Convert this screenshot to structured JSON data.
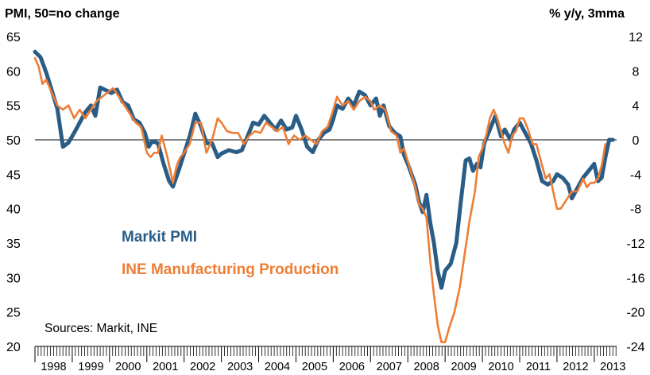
{
  "chart_data": {
    "type": "line",
    "left_axis_title": "PMI, 50=no change",
    "right_axis_title": "% y/y, 3mma",
    "left_ylim": [
      20,
      65
    ],
    "left_ticks": [
      "65",
      "60",
      "55",
      "50",
      "45",
      "40",
      "35",
      "30",
      "25",
      "20"
    ],
    "right_ylim": [
      -24,
      12
    ],
    "right_ticks": [
      "12",
      "8",
      "4",
      "0",
      "-4",
      "-8",
      "-12",
      "-16",
      "-20",
      "-24"
    ],
    "x_range": [
      1998.0,
      2013.6
    ],
    "year_labels": [
      "1998",
      "1999",
      "2000",
      "2001",
      "2002",
      "2003",
      "2004",
      "2005",
      "2006",
      "2007",
      "2008",
      "2009",
      "2010",
      "2011",
      "2012",
      "2013"
    ],
    "reference_line": {
      "axis": "right",
      "value": 0
    },
    "source": "Sources: Markit, INE",
    "series": [
      {
        "name": "Markit PMI",
        "axis": "left",
        "color": "#2a5d86",
        "points": [
          [
            1998.0,
            62.8
          ],
          [
            1998.15,
            62.0
          ],
          [
            1998.3,
            59.8
          ],
          [
            1998.45,
            57.2
          ],
          [
            1998.6,
            54.5
          ],
          [
            1998.75,
            49.0
          ],
          [
            1998.9,
            49.6
          ],
          [
            1999.05,
            51.0
          ],
          [
            1999.2,
            52.5
          ],
          [
            1999.35,
            54.0
          ],
          [
            1999.5,
            55.0
          ],
          [
            1999.62,
            53.5
          ],
          [
            1999.75,
            57.6
          ],
          [
            1999.9,
            57.2
          ],
          [
            2000.05,
            56.8
          ],
          [
            2000.2,
            57.3
          ],
          [
            2000.35,
            55.5
          ],
          [
            2000.5,
            55.0
          ],
          [
            2000.65,
            53.0
          ],
          [
            2000.8,
            52.5
          ],
          [
            2000.95,
            51.0
          ],
          [
            2001.05,
            49.0
          ],
          [
            2001.15,
            49.8
          ],
          [
            2001.3,
            49.5
          ],
          [
            2001.45,
            46.5
          ],
          [
            2001.6,
            44.0
          ],
          [
            2001.7,
            43.2
          ],
          [
            2001.85,
            45.5
          ],
          [
            2002.0,
            48.0
          ],
          [
            2002.15,
            50.5
          ],
          [
            2002.3,
            53.8
          ],
          [
            2002.45,
            52.0
          ],
          [
            2002.6,
            49.5
          ],
          [
            2002.75,
            49.5
          ],
          [
            2002.9,
            47.5
          ],
          [
            2003.0,
            48.0
          ],
          [
            2003.2,
            48.5
          ],
          [
            2003.4,
            48.2
          ],
          [
            2003.55,
            48.5
          ],
          [
            2003.7,
            50.5
          ],
          [
            2003.85,
            52.5
          ],
          [
            2004.0,
            52.2
          ],
          [
            2004.15,
            53.5
          ],
          [
            2004.3,
            52.5
          ],
          [
            2004.45,
            51.5
          ],
          [
            2004.6,
            52.8
          ],
          [
            2004.75,
            51.5
          ],
          [
            2004.9,
            51.8
          ],
          [
            2005.0,
            53.5
          ],
          [
            2005.15,
            51.5
          ],
          [
            2005.3,
            49.0
          ],
          [
            2005.45,
            48.2
          ],
          [
            2005.6,
            50.0
          ],
          [
            2005.75,
            51.0
          ],
          [
            2005.9,
            51.5
          ],
          [
            2006.0,
            53.0
          ],
          [
            2006.1,
            55.0
          ],
          [
            2006.25,
            54.5
          ],
          [
            2006.4,
            56.0
          ],
          [
            2006.55,
            55.0
          ],
          [
            2006.7,
            57.0
          ],
          [
            2006.85,
            56.5
          ],
          [
            2007.0,
            55.0
          ],
          [
            2007.15,
            56.0
          ],
          [
            2007.25,
            53.5
          ],
          [
            2007.35,
            55.0
          ],
          [
            2007.5,
            52.0
          ],
          [
            2007.65,
            51.0
          ],
          [
            2007.8,
            50.5
          ],
          [
            2007.9,
            47.8
          ],
          [
            2008.0,
            46.5
          ],
          [
            2008.1,
            45.0
          ],
          [
            2008.2,
            43.5
          ],
          [
            2008.3,
            41.0
          ],
          [
            2008.4,
            39.5
          ],
          [
            2008.5,
            42.0
          ],
          [
            2008.6,
            38.0
          ],
          [
            2008.7,
            35.0
          ],
          [
            2008.8,
            31.0
          ],
          [
            2008.9,
            28.5
          ],
          [
            2009.0,
            31.0
          ],
          [
            2009.15,
            32.0
          ],
          [
            2009.3,
            35.0
          ],
          [
            2009.4,
            40.0
          ],
          [
            2009.55,
            47.0
          ],
          [
            2009.65,
            47.3
          ],
          [
            2009.75,
            45.5
          ],
          [
            2009.85,
            46.5
          ],
          [
            2009.95,
            46.0
          ],
          [
            2010.05,
            49.5
          ],
          [
            2010.2,
            51.5
          ],
          [
            2010.35,
            53.5
          ],
          [
            2010.5,
            50.5
          ],
          [
            2010.6,
            51.5
          ],
          [
            2010.75,
            50.0
          ],
          [
            2010.85,
            51.5
          ],
          [
            2011.0,
            52.5
          ],
          [
            2011.15,
            51.0
          ],
          [
            2011.3,
            49.5
          ],
          [
            2011.45,
            47.0
          ],
          [
            2011.6,
            44.0
          ],
          [
            2011.75,
            43.5
          ],
          [
            2011.9,
            44.0
          ],
          [
            2012.0,
            45.0
          ],
          [
            2012.15,
            44.5
          ],
          [
            2012.3,
            43.5
          ],
          [
            2012.4,
            41.5
          ],
          [
            2012.55,
            43.0
          ],
          [
            2012.7,
            44.5
          ],
          [
            2012.85,
            45.5
          ],
          [
            2013.0,
            46.5
          ],
          [
            2013.1,
            44.0
          ],
          [
            2013.2,
            44.5
          ],
          [
            2013.3,
            47.5
          ],
          [
            2013.4,
            50.0
          ],
          [
            2013.5,
            50.0
          ]
        ]
      },
      {
        "name": "INE Manufacturing Production",
        "axis": "right",
        "color": "#ee7d35",
        "points": [
          [
            1998.0,
            9.5
          ],
          [
            1998.1,
            8.5
          ],
          [
            1998.2,
            6.5
          ],
          [
            1998.3,
            7.0
          ],
          [
            1998.45,
            5.5
          ],
          [
            1998.6,
            4.0
          ],
          [
            1998.75,
            3.5
          ],
          [
            1998.9,
            4.0
          ],
          [
            1999.05,
            2.5
          ],
          [
            1999.2,
            3.5
          ],
          [
            1999.35,
            2.5
          ],
          [
            1999.5,
            3.5
          ],
          [
            1999.65,
            4.5
          ],
          [
            1999.8,
            5.0
          ],
          [
            1999.95,
            5.5
          ],
          [
            2000.1,
            6.0
          ],
          [
            2000.25,
            5.0
          ],
          [
            2000.4,
            4.0
          ],
          [
            2000.55,
            3.0
          ],
          [
            2000.7,
            2.0
          ],
          [
            2000.85,
            1.5
          ],
          [
            2001.0,
            -1.5
          ],
          [
            2001.1,
            -2.0
          ],
          [
            2001.2,
            -1.5
          ],
          [
            2001.3,
            -1.5
          ],
          [
            2001.4,
            0.5
          ],
          [
            2001.55,
            -2.0
          ],
          [
            2001.7,
            -5.0
          ],
          [
            2001.8,
            -3.0
          ],
          [
            2001.9,
            -2.0
          ],
          [
            2002.0,
            -1.5
          ],
          [
            2002.15,
            -0.5
          ],
          [
            2002.3,
            2.0
          ],
          [
            2002.45,
            2.0
          ],
          [
            2002.6,
            -1.5
          ],
          [
            2002.75,
            0.0
          ],
          [
            2002.9,
            2.5
          ],
          [
            2003.0,
            2.0
          ],
          [
            2003.15,
            1.0
          ],
          [
            2003.3,
            0.8
          ],
          [
            2003.45,
            0.8
          ],
          [
            2003.6,
            -0.5
          ],
          [
            2003.75,
            0.5
          ],
          [
            2003.9,
            1.0
          ],
          [
            2004.05,
            0.8
          ],
          [
            2004.2,
            2.0
          ],
          [
            2004.35,
            1.5
          ],
          [
            2004.5,
            1.0
          ],
          [
            2004.65,
            1.5
          ],
          [
            2004.8,
            -0.5
          ],
          [
            2004.95,
            0.5
          ],
          [
            2005.1,
            0.0
          ],
          [
            2005.25,
            0.5
          ],
          [
            2005.4,
            0.0
          ],
          [
            2005.55,
            -0.5
          ],
          [
            2005.7,
            1.0
          ],
          [
            2005.85,
            1.5
          ],
          [
            2006.0,
            3.5
          ],
          [
            2006.1,
            5.0
          ],
          [
            2006.25,
            4.0
          ],
          [
            2006.4,
            4.5
          ],
          [
            2006.55,
            3.5
          ],
          [
            2006.7,
            4.5
          ],
          [
            2006.85,
            5.0
          ],
          [
            2007.0,
            4.5
          ],
          [
            2007.1,
            3.5
          ],
          [
            2007.25,
            4.0
          ],
          [
            2007.4,
            3.5
          ],
          [
            2007.55,
            1.0
          ],
          [
            2007.7,
            0.5
          ],
          [
            2007.8,
            -1.5
          ],
          [
            2007.9,
            -1.0
          ],
          [
            2008.0,
            -2.5
          ],
          [
            2008.1,
            -4.0
          ],
          [
            2008.2,
            -5.5
          ],
          [
            2008.3,
            -7.5
          ],
          [
            2008.4,
            -8.0
          ],
          [
            2008.5,
            -9.0
          ],
          [
            2008.6,
            -14.0
          ],
          [
            2008.7,
            -18.0
          ],
          [
            2008.8,
            -21.5
          ],
          [
            2008.9,
            -23.5
          ],
          [
            2009.0,
            -23.5
          ],
          [
            2009.1,
            -22.0
          ],
          [
            2009.25,
            -20.0
          ],
          [
            2009.4,
            -17.0
          ],
          [
            2009.5,
            -14.0
          ],
          [
            2009.65,
            -9.5
          ],
          [
            2009.8,
            -6.0
          ],
          [
            2009.9,
            -2.0
          ],
          [
            2010.0,
            -1.0
          ],
          [
            2010.1,
            0.5
          ],
          [
            2010.2,
            2.5
          ],
          [
            2010.3,
            3.5
          ],
          [
            2010.4,
            2.5
          ],
          [
            2010.5,
            1.0
          ],
          [
            2010.6,
            -0.5
          ],
          [
            2010.7,
            -1.5
          ],
          [
            2010.8,
            0.5
          ],
          [
            2010.9,
            1.0
          ],
          [
            2011.0,
            2.5
          ],
          [
            2011.1,
            2.5
          ],
          [
            2011.2,
            1.5
          ],
          [
            2011.35,
            -0.5
          ],
          [
            2011.45,
            -0.5
          ],
          [
            2011.6,
            -3.0
          ],
          [
            2011.7,
            -4.5
          ],
          [
            2011.8,
            -4.0
          ],
          [
            2011.9,
            -6.0
          ],
          [
            2012.0,
            -8.0
          ],
          [
            2012.1,
            -8.0
          ],
          [
            2012.25,
            -7.0
          ],
          [
            2012.4,
            -6.0
          ],
          [
            2012.55,
            -6.0
          ],
          [
            2012.7,
            -4.5
          ],
          [
            2012.8,
            -5.5
          ],
          [
            2012.9,
            -5.0
          ],
          [
            2013.0,
            -5.0
          ],
          [
            2013.1,
            -4.5
          ],
          [
            2013.2,
            -3.0
          ],
          [
            2013.3,
            -0.5
          ]
        ]
      }
    ]
  }
}
